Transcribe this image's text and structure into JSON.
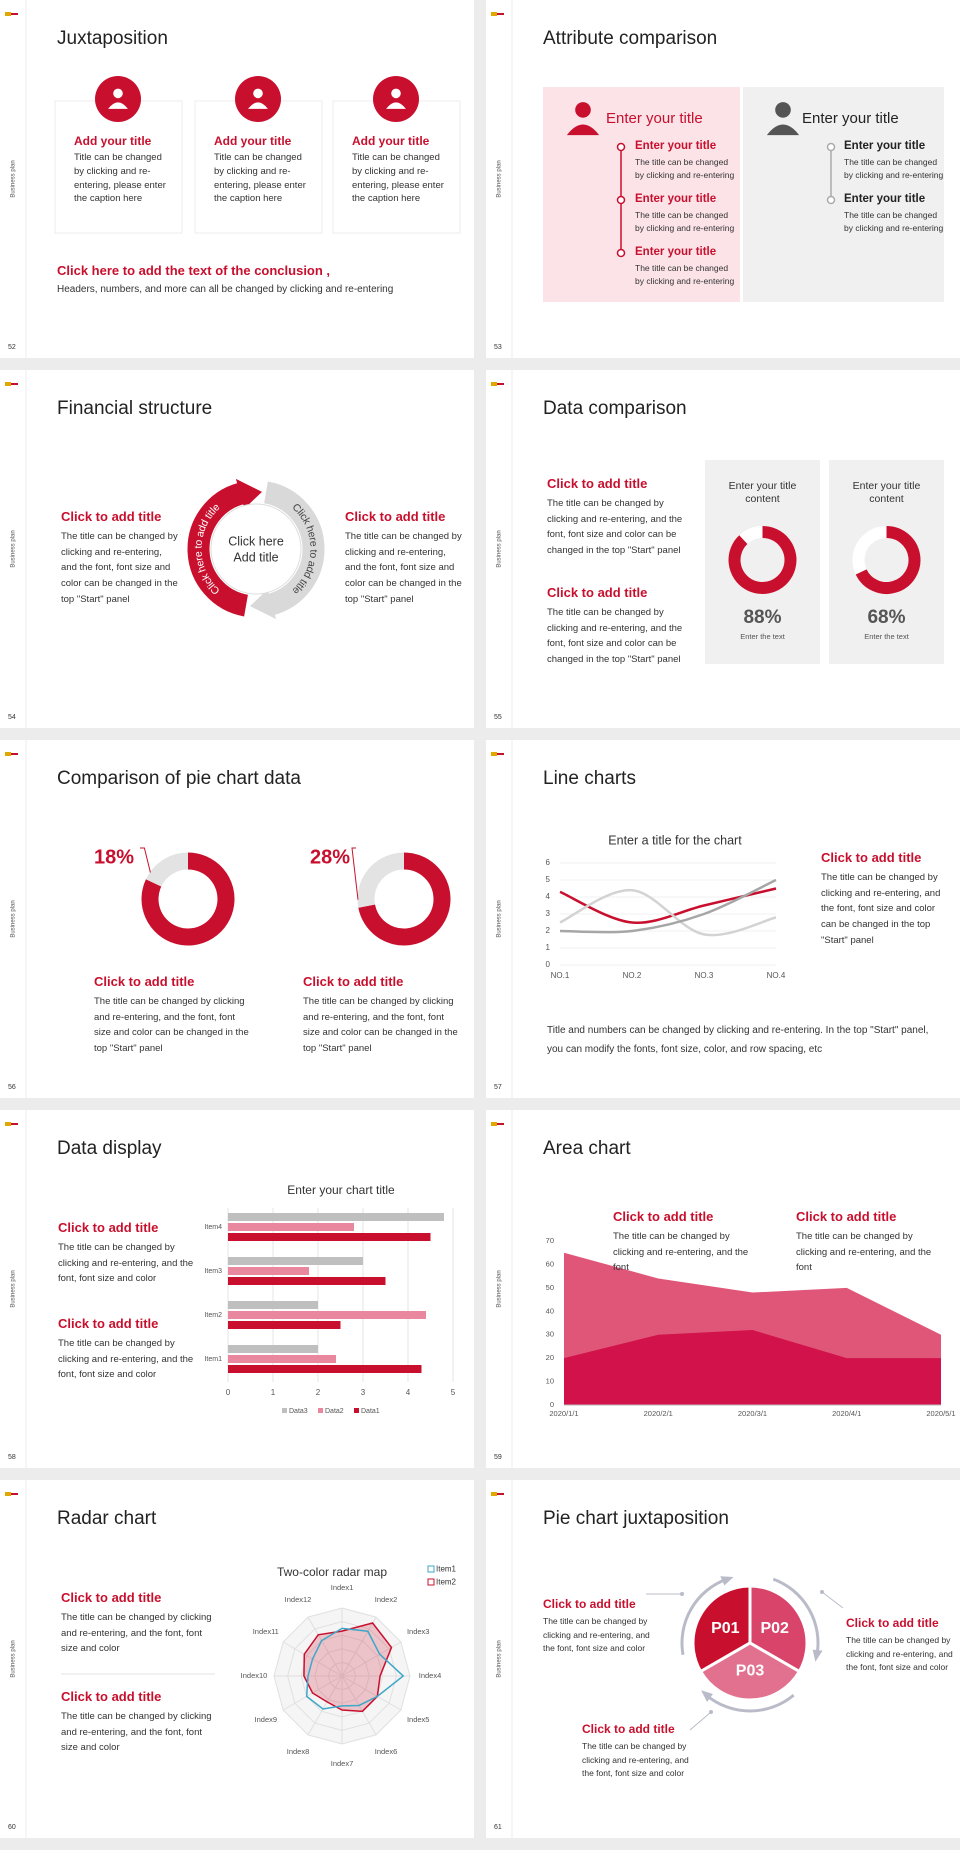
{
  "slides": [
    {
      "page": 52,
      "side": "Business plan",
      "title": "Juxtaposition",
      "cards": [
        {
          "title": "Add your title",
          "text": "Title can be changed by clicking and re-entering, please enter the caption here"
        },
        {
          "title": "Add your title",
          "text": "Title can be changed by clicking and re-entering, please enter the caption here"
        },
        {
          "title": "Add your title",
          "text": "Title can be changed by clicking and re-entering, please enter the caption here"
        }
      ],
      "conclusion": "Click here to add the text of the conclusion ,",
      "note": "Headers, numbers, and more can all be changed by clicking and re-entering"
    },
    {
      "page": 53,
      "side": "Business plan",
      "title": "Attribute comparison",
      "panels": [
        {
          "heading": "Enter your title",
          "items": [
            {
              "title": "Enter your title",
              "text": "The title can be changed by clicking and re-entering"
            },
            {
              "title": "Enter your title",
              "text": "The title can be changed by clicking and re-entering"
            },
            {
              "title": "Enter your title",
              "text": "The title can be changed by clicking and re-entering"
            }
          ]
        },
        {
          "heading": "Enter your title",
          "items": [
            {
              "title": "Enter your title",
              "text": "The title can be changed by clicking and re-entering"
            },
            {
              "title": "Enter your title",
              "text": "The title can be changed by clicking and re-entering"
            }
          ]
        }
      ]
    },
    {
      "page": 54,
      "side": "Business plan",
      "title": "Financial structure",
      "left": {
        "title": "Click to add title",
        "text": "The title can be changed by clicking and re-entering, and the font, font size and color can be changed in the top \"Start\" panel"
      },
      "right": {
        "title": "Click to add title",
        "text": "The title can be changed by clicking and re-entering, and the font, font size and color can be changed in the top \"Start\" panel"
      },
      "center": [
        "Click here",
        "Add title"
      ],
      "arcs": [
        "Click here to add title",
        "Click here to add title"
      ]
    },
    {
      "page": 55,
      "side": "Business plan",
      "title": "Data comparison",
      "blocks": [
        {
          "title": "Click to add title",
          "text": "The title can be changed by clicking and re-entering, and the font, font size and color can be changed in the top \"Start\" panel"
        },
        {
          "title": "Click to add title",
          "text": "The title can be changed by clicking and re-entering, and the font, font size and color can be changed in the top \"Start\" panel"
        }
      ],
      "gauges": [
        {
          "label": "Enter your title content",
          "value": 88,
          "value_label": "88%",
          "caption": "Enter the text"
        },
        {
          "label": "Enter your title content",
          "value": 68,
          "value_label": "68%",
          "caption": "Enter the text"
        }
      ]
    },
    {
      "page": 56,
      "side": "Business plan",
      "title": "Comparison of pie chart data",
      "pies": [
        {
          "value": 18,
          "value_label": "18%",
          "title": "Click to add title",
          "text": "The title can be changed by clicking and re-entering, and the font, font size and color can be changed in the top \"Start\" panel"
        },
        {
          "value": 28,
          "value_label": "28%",
          "title": "Click to add title",
          "text": "The title can be changed by clicking and re-entering, and the font, font size and color can be changed in the top \"Start\" panel"
        }
      ]
    },
    {
      "page": 57,
      "side": "Business plan",
      "title": "Line charts",
      "chart": {
        "type": "line",
        "title": "Enter a title for the chart",
        "categories": [
          "NO.1",
          "NO.2",
          "NO.3",
          "NO.4"
        ],
        "series": [
          {
            "color": "#c8102e",
            "values": [
              4.3,
              2.5,
              3.5,
              4.5
            ]
          },
          {
            "color": "#d3d3d3",
            "values": [
              2.5,
              4.4,
              1.8,
              2.8
            ]
          },
          {
            "color": "#a6a6a6",
            "values": [
              2,
              2,
              3,
              5
            ]
          }
        ],
        "ylim": [
          0,
          6
        ],
        "yticks": [
          0,
          1,
          2,
          3,
          4,
          5,
          6
        ],
        "grid": true
      },
      "aside": {
        "title": "Click to add title",
        "text": "The title can be changed by clicking and re-entering, and the font, font size and color can be changed in the top \"Start\" panel"
      },
      "note": "Title and numbers can be changed by clicking and re-entering. In the top \"Start\" panel, you can modify the fonts, font size, color, and row spacing, etc"
    },
    {
      "page": 58,
      "side": "Business plan",
      "title": "Data display",
      "blocks": [
        {
          "title": "Click to add title",
          "text": "The title can be changed by clicking and re-entering, and the font, font size and color"
        },
        {
          "title": "Click to add title",
          "text": "The title can be changed by clicking and re-entering, and the font, font size and color"
        }
      ],
      "chart": {
        "type": "bar",
        "title": "Enter your chart title",
        "categories": [
          "Item1",
          "Item2",
          "Item3",
          "Item4"
        ],
        "series": [
          {
            "name": "Data3",
            "color": "#bfbfbf",
            "values": [
              2,
              2,
              3,
              4.8
            ]
          },
          {
            "name": "Data2",
            "color": "#e8879e",
            "values": [
              2.4,
              4.4,
              1.8,
              2.8
            ]
          },
          {
            "name": "Data1",
            "color": "#c8102e",
            "values": [
              4.3,
              2.5,
              3.5,
              4.5
            ]
          }
        ],
        "xlim": [
          0,
          5
        ],
        "xticks": [
          0,
          1,
          2,
          3,
          4,
          5
        ],
        "grid": true
      }
    },
    {
      "page": 59,
      "side": "Business plan",
      "title": "Area chart",
      "blocks": [
        {
          "title": "Click to add title",
          "text": "The title can be changed by clicking and re-entering, and the font"
        },
        {
          "title": "Click to add title",
          "text": "The title can be changed by clicking and re-entering, and the font"
        }
      ],
      "chart": {
        "type": "area",
        "x": [
          "2020/1/1",
          "2020/2/1",
          "2020/3/1",
          "2020/4/1",
          "2020/5/1"
        ],
        "series": [
          {
            "color": "#e05679",
            "values": [
              65,
              54,
              48,
              50,
              30
            ]
          },
          {
            "color": "#d2124a",
            "values": [
              20,
              30,
              32,
              20,
              20
            ]
          }
        ],
        "ylim": [
          0,
          70
        ],
        "yticks": [
          0,
          10,
          20,
          30,
          40,
          50,
          60,
          70
        ]
      }
    },
    {
      "page": 60,
      "side": "Business plan",
      "title": "Radar chart",
      "blocks": [
        {
          "title": "Click to add title",
          "text": "The title can be changed by clicking and re-entering, and the font, font size and color"
        },
        {
          "title": "Click to add title",
          "text": "The title can be changed by clicking and re-entering, and the font, font size and color"
        }
      ],
      "chart": {
        "type": "radar",
        "title": "Two-color radar map",
        "categories": [
          "Index1",
          "Index2",
          "Index3",
          "Index4",
          "Index5",
          "Index6",
          "Index7",
          "Index8",
          "Index9",
          "Index10",
          "Index11",
          "Index12"
        ],
        "series": [
          {
            "name": "Item1",
            "color": "#3fa7c9",
            "values": [
              3.5,
              3.8,
              3.2,
              4.5,
              3,
              2.5,
              2.2,
              2.8,
              3,
              2.5,
              2.5,
              3
            ]
          },
          {
            "name": "Item2",
            "color": "#c8102e",
            "values": [
              3.3,
              4.5,
              4.2,
              2.8,
              3,
              3,
              2.5,
              2.2,
              2.5,
              2.8,
              3.2,
              3.5
            ]
          }
        ],
        "rlim": [
          0,
          5
        ]
      }
    },
    {
      "page": 61,
      "side": "Business plan",
      "title": "Pie chart juxtaposition",
      "blocks": [
        {
          "title": "Click to add title",
          "text": "The title can be changed by clicking and re-entering, and the font, font size and color"
        },
        {
          "title": "Click to add title",
          "text": "The title can be changed by clicking and re-entering, and the font, font size and color"
        },
        {
          "title": "Click to add title",
          "text": "The title can be changed by clicking and re-entering, and the font, font size and color"
        }
      ],
      "segments": [
        "P01",
        "P02",
        "P03"
      ]
    }
  ]
}
